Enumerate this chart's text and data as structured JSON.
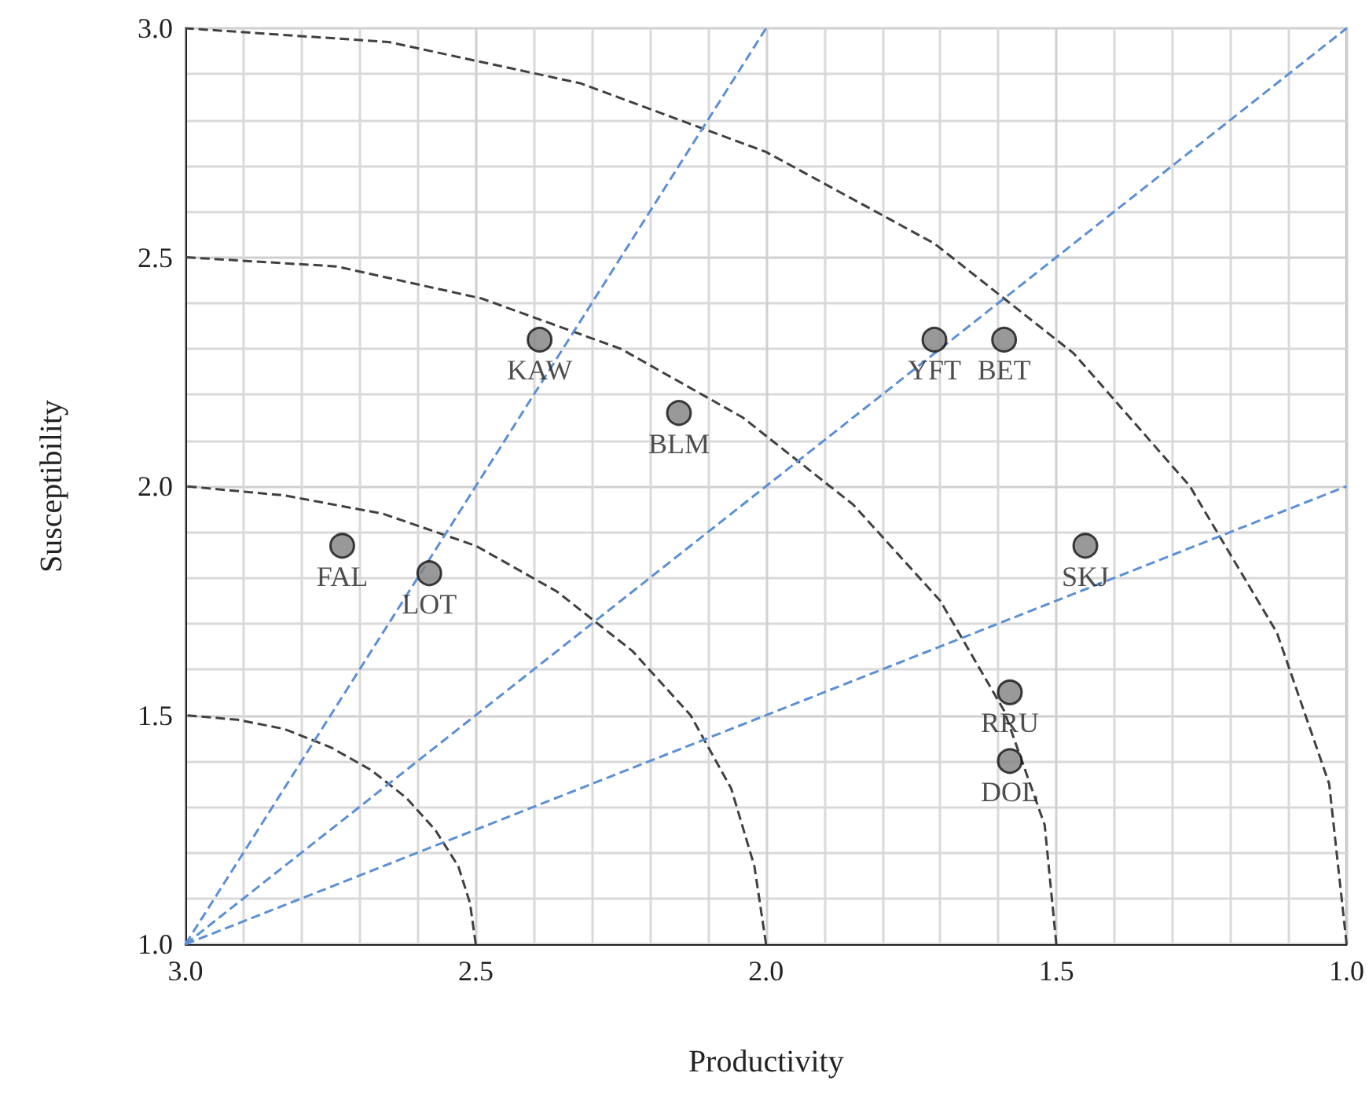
{
  "chart_data": {
    "type": "scatter",
    "xlabel": "Productivity",
    "ylabel": "Susceptibility",
    "xlim": [
      3,
      1
    ],
    "ylim": [
      1,
      3
    ],
    "xticks": [
      {
        "value": 3,
        "label": "3.0"
      },
      {
        "value": 2.5,
        "label": "2.5"
      },
      {
        "value": 2,
        "label": "2.0"
      },
      {
        "value": 1.5,
        "label": "1.5"
      },
      {
        "value": 1,
        "label": "1.0"
      }
    ],
    "yticks": [
      {
        "value": 1,
        "label": "1.0"
      },
      {
        "value": 1.5,
        "label": "1.5"
      },
      {
        "value": 2,
        "label": "2.0"
      },
      {
        "value": 2.5,
        "label": "2.5"
      },
      {
        "value": 3,
        "label": "3.0"
      }
    ],
    "grid": true,
    "series": [
      {
        "type": "line",
        "color": "#404040",
        "line_style": "dashed",
        "marker": "none",
        "x": [
          2.5,
          2.51,
          2.53,
          2.57,
          2.62,
          2.68,
          2.75,
          2.83,
          2.91,
          3.0
        ],
        "values": [
          1,
          1.09,
          1.17,
          1.25,
          1.32,
          1.38,
          1.43,
          1.47,
          1.49,
          1.5
        ]
      },
      {
        "type": "line",
        "color": "#404040",
        "line_style": "dashed",
        "marker": "none",
        "x": [
          2,
          2.02,
          2.06,
          2.13,
          2.23,
          2.36,
          2.5,
          2.66,
          2.83,
          3
        ],
        "values": [
          1,
          1.17,
          1.34,
          1.5,
          1.64,
          1.77,
          1.87,
          1.94,
          1.98,
          2
        ]
      },
      {
        "type": "line",
        "color": "#404040",
        "line_style": "dashed",
        "marker": "none",
        "x": [
          1.5,
          1.52,
          1.59,
          1.7,
          1.85,
          2.04,
          2.25,
          2.49,
          2.74,
          3
        ],
        "values": [
          1,
          1.26,
          1.51,
          1.75,
          1.96,
          2.15,
          2.3,
          2.41,
          2.48,
          2.5
        ]
      },
      {
        "type": "line",
        "color": "#404040",
        "line_style": "dashed",
        "marker": "none",
        "x": [
          1,
          1.03,
          1.12,
          1.27,
          1.47,
          1.71,
          2,
          2.32,
          2.65,
          3
        ],
        "values": [
          1,
          1.35,
          1.68,
          2,
          2.29,
          2.53,
          2.73,
          2.88,
          2.97,
          3
        ]
      },
      {
        "type": "line",
        "color": "#5b8fd6",
        "line_style": "dashed",
        "marker": "none",
        "x": [
          3,
          2
        ],
        "values": [
          1,
          3
        ]
      },
      {
        "type": "line",
        "color": "#5b8fd6",
        "line_style": "dashed",
        "marker": "none",
        "x": [
          3,
          1
        ],
        "values": [
          1,
          3
        ]
      },
      {
        "type": "line",
        "color": "#5b8fd6",
        "line_style": "dashed",
        "marker": "none",
        "x": [
          3,
          1
        ],
        "values": [
          1,
          2
        ]
      },
      {
        "type": "scatter",
        "color": "#808080",
        "marker": "circle",
        "x": [
          2.73,
          2.58,
          2.39,
          2.15,
          1.71,
          1.59,
          1.45,
          1.58,
          1.58
        ],
        "values": [
          1.87,
          1.81,
          2.32,
          2.16,
          2.32,
          2.32,
          1.87,
          1.55,
          1.4
        ]
      }
    ],
    "annotations": [
      {
        "text": "FAL",
        "x": 2.73,
        "y": 1.87
      },
      {
        "text": "LOT",
        "x": 2.58,
        "y": 1.81
      },
      {
        "text": "KAW",
        "x": 2.39,
        "y": 2.32
      },
      {
        "text": "BLM",
        "x": 2.15,
        "y": 2.16
      },
      {
        "text": "YFT",
        "x": 1.71,
        "y": 2.32
      },
      {
        "text": "BET",
        "x": 1.59,
        "y": 2.32
      },
      {
        "text": "SKJ",
        "x": 1.45,
        "y": 1.87
      },
      {
        "text": "RRU",
        "x": 1.58,
        "y": 1.55
      },
      {
        "text": "DOL",
        "x": 1.58,
        "y": 1.4
      }
    ]
  }
}
